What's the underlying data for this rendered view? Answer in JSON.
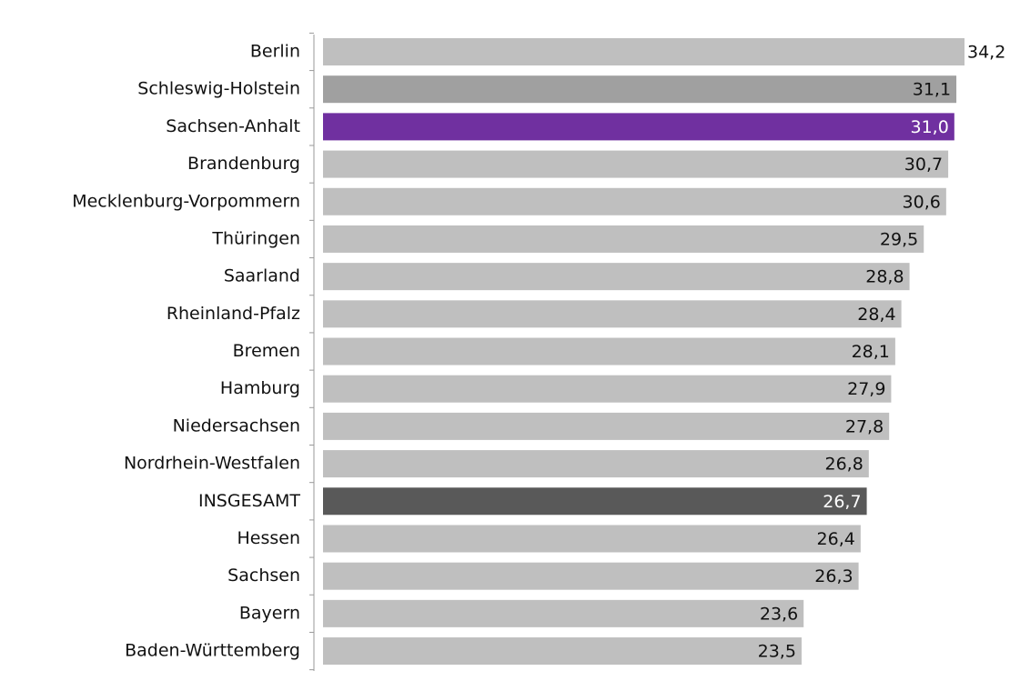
{
  "chart_data": {
    "type": "bar",
    "orientation": "horizontal",
    "categories": [
      "Berlin",
      "Schleswig-Holstein",
      "Sachsen-Anhalt",
      "Brandenburg",
      "Mecklenburg-Vorpommern",
      "Thüringen",
      "Saarland",
      "Rheinland-Pfalz",
      "Bremen",
      "Hamburg",
      "Niedersachsen",
      "Nordrhein-Westfalen",
      "INSGESAMT",
      "Hessen",
      "Sachsen",
      "Bayern",
      "Baden-Württemberg"
    ],
    "values": [
      34.2,
      31.1,
      31.0,
      30.7,
      30.6,
      29.5,
      28.8,
      28.4,
      28.1,
      27.9,
      27.8,
      26.8,
      26.7,
      26.4,
      26.3,
      23.6,
      23.5
    ],
    "value_labels": [
      "34,2",
      "31,1",
      "31,0",
      "30,7",
      "30,6",
      "29,5",
      "28,8",
      "28,4",
      "28,1",
      "27,9",
      "27,8",
      "26,8",
      "26,7",
      "26,4",
      "26,3",
      "23,6",
      "23,5"
    ],
    "colors": [
      "#bfbfbf",
      "#a0a0a0",
      "#7030a0",
      "#bfbfbf",
      "#bfbfbf",
      "#bfbfbf",
      "#bfbfbf",
      "#bfbfbf",
      "#bfbfbf",
      "#bfbfbf",
      "#bfbfbf",
      "#bfbfbf",
      "#595959",
      "#bfbfbf",
      "#bfbfbf",
      "#bfbfbf",
      "#bfbfbf"
    ],
    "xlim": [
      0,
      31.5
    ]
  }
}
